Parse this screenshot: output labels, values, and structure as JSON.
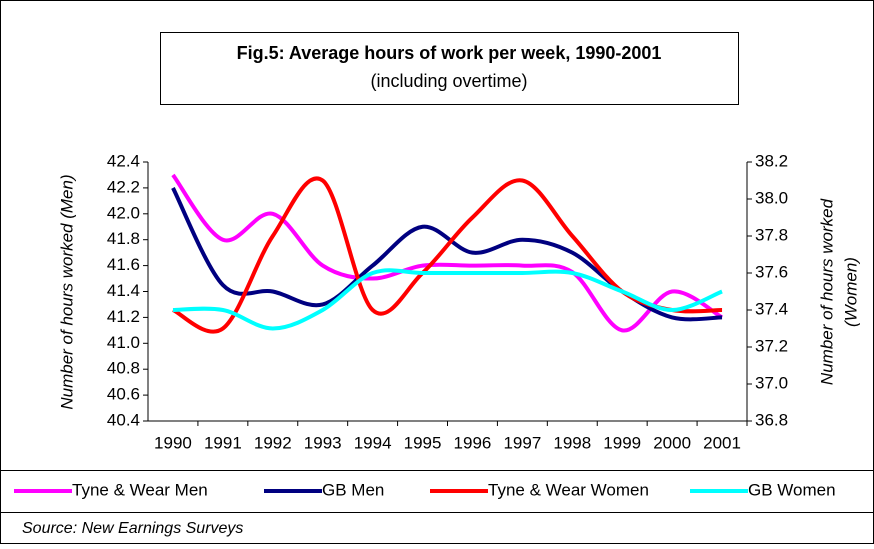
{
  "chart_data": {
    "type": "line",
    "title": "Fig.5: Average hours of work per week, 1990-2001",
    "subtitle": "(including overtime)",
    "y_label": "Number of hours worked (Men)",
    "y2_label": [
      "Number of hours worked",
      "(Women)"
    ],
    "source": "Source: New Earnings Surveys",
    "categories": [
      "1990",
      "1991",
      "1992",
      "1993",
      "1994",
      "1995",
      "1996",
      "1997",
      "1998",
      "1999",
      "2000",
      "2001"
    ],
    "ylim": [
      40.4,
      42.4
    ],
    "yticks": [
      40.4,
      40.6,
      40.8,
      {
        "value": 41,
        "label": "41.0"
      },
      41.2,
      41.4,
      41.6,
      41.8,
      {
        "value": 42,
        "label": "42.0"
      },
      42.2,
      42.4
    ],
    "y2lim": [
      36.8,
      38.2
    ],
    "y2ticks": [
      36.8,
      {
        "value": 37,
        "label": "37.0"
      },
      37.2,
      37.4,
      37.6,
      37.8,
      {
        "value": 38,
        "label": "38.0"
      },
      38.2
    ],
    "smooth": true,
    "series": [
      {
        "name": "Tyne & Wear Men",
        "color": "#ff00ff",
        "values": [
          42.3,
          41.8,
          42.0,
          41.6,
          41.5,
          41.6,
          41.6,
          41.6,
          41.55,
          41.1,
          41.4,
          41.2
        ]
      },
      {
        "name": "GB Men",
        "color": "#000080",
        "values": [
          42.2,
          41.45,
          41.4,
          41.3,
          41.6,
          41.9,
          41.7,
          41.8,
          41.7,
          41.4,
          41.2,
          41.2
        ]
      },
      {
        "name": "Tyne & Wear Women",
        "color": "#ff0000",
        "axis": "y2",
        "values": [
          37.4,
          37.3,
          37.8,
          38.1,
          37.4,
          37.6,
          37.9,
          38.1,
          37.8,
          37.5,
          37.4,
          37.4
        ]
      },
      {
        "name": "GB Women",
        "color": "#00ffff",
        "axis": "y2",
        "values": [
          37.4,
          37.4,
          37.3,
          37.4,
          37.6,
          37.6,
          37.6,
          37.6,
          37.6,
          37.5,
          37.4,
          37.5
        ]
      }
    ]
  }
}
